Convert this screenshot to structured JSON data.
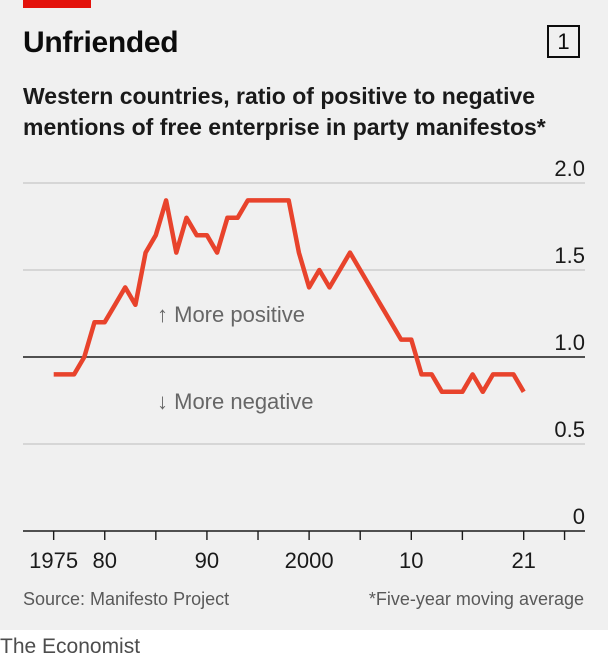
{
  "header": {
    "title": "Unfriended",
    "badge": "1",
    "subtitle": "Western countries, ratio of positive to negative mentions of free enterprise in party manifestos*"
  },
  "annotations": {
    "above": "↑ More positive",
    "below": "↓ More negative"
  },
  "footer": {
    "source": "Source: Manifesto Project",
    "note": "*Five-year moving average",
    "brand": "The Economist"
  },
  "colors": {
    "line": "#e8432c",
    "accent": "#e3120b",
    "grid": "#c5c5c5",
    "baseline": "#1a1a1a"
  },
  "chart_data": {
    "type": "line",
    "title": "Unfriended",
    "xlabel": "",
    "ylabel": "",
    "xlim": [
      1972,
      2027
    ],
    "ylim": [
      0,
      2.0
    ],
    "reference_line": 1.0,
    "x_ticks": [
      1975,
      1980,
      1985,
      1990,
      1995,
      2000,
      2005,
      2010,
      2015,
      2021,
      2025
    ],
    "x_labels": [
      {
        "x": 1975,
        "label": "1975"
      },
      {
        "x": 1980,
        "label": "80"
      },
      {
        "x": 1990,
        "label": "90"
      },
      {
        "x": 2000,
        "label": "2000"
      },
      {
        "x": 2010,
        "label": "10"
      },
      {
        "x": 2021,
        "label": "21"
      }
    ],
    "y_ticks": [
      {
        "value": 0,
        "label": "0"
      },
      {
        "value": 0.5,
        "label": "0.5"
      },
      {
        "value": 1.0,
        "label": "1.0"
      },
      {
        "value": 1.5,
        "label": "1.5"
      },
      {
        "value": 2.0,
        "label": "2.0"
      }
    ],
    "series": [
      {
        "x": [
          1975,
          1976,
          1977,
          1978,
          1979,
          1980,
          1981,
          1982,
          1983,
          1984,
          1985,
          1986,
          1987,
          1988,
          1989,
          1990,
          1991,
          1992,
          1993,
          1994,
          1995,
          1996,
          1997,
          1998,
          1999,
          2000,
          2001,
          2002,
          2003,
          2004,
          2005,
          2006,
          2007,
          2008,
          2009,
          2010,
          2011,
          2012,
          2013,
          2014,
          2015,
          2016,
          2017,
          2018,
          2019,
          2020,
          2021
        ],
        "values": [
          0.9,
          0.9,
          0.9,
          1.0,
          1.2,
          1.2,
          1.3,
          1.4,
          1.3,
          1.6,
          1.7,
          1.9,
          1.6,
          1.8,
          1.7,
          1.7,
          1.6,
          1.8,
          1.8,
          1.9,
          1.9,
          1.9,
          1.9,
          1.9,
          1.6,
          1.4,
          1.5,
          1.4,
          1.5,
          1.6,
          1.5,
          1.4,
          1.3,
          1.2,
          1.1,
          1.1,
          0.9,
          0.9,
          0.8,
          0.8,
          0.8,
          0.9,
          0.8,
          0.9,
          0.9,
          0.9,
          0.8
        ]
      }
    ]
  }
}
